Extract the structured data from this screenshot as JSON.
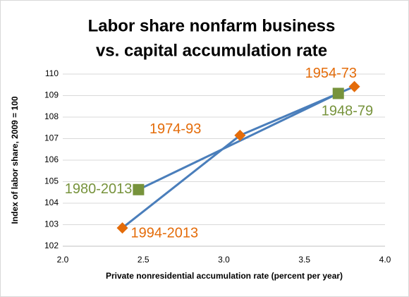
{
  "chart_data": {
    "type": "scatter",
    "title": [
      "Labor share nonfarm business",
      "vs. capital accumulation rate"
    ],
    "x_label": "Private nonresidential accumulation rate (percent per year)",
    "y_label": "Index of labor share, 2009 = 100",
    "xlim": [
      2.0,
      4.0
    ],
    "xticks": [
      {
        "value": 2.0,
        "label": "2.0"
      },
      {
        "value": 2.5,
        "label": "2.5"
      },
      {
        "value": 3.0,
        "label": "3.0"
      },
      {
        "value": 3.5,
        "label": "3.5"
      },
      {
        "value": 4.0,
        "label": "4.0"
      }
    ],
    "ylim": [
      102,
      110
    ],
    "yticks": [
      102,
      103,
      104,
      105,
      106,
      107,
      108,
      109,
      110
    ],
    "grid": true,
    "line_color": "#4a7ebb",
    "series": [
      {
        "color": "#e46c0a",
        "marker": "diamond",
        "x": [
          3.81,
          3.1,
          2.37
        ],
        "values": [
          109.42,
          107.15,
          102.85
        ],
        "point_labels": [
          "1954-73",
          "1974-93",
          "1994-2013"
        ]
      },
      {
        "color": "#77933c",
        "marker": "square",
        "x": [
          3.71,
          2.47
        ],
        "values": [
          109.1,
          104.63
        ],
        "point_labels": [
          "1948-79",
          "1980-2013"
        ]
      }
    ]
  }
}
